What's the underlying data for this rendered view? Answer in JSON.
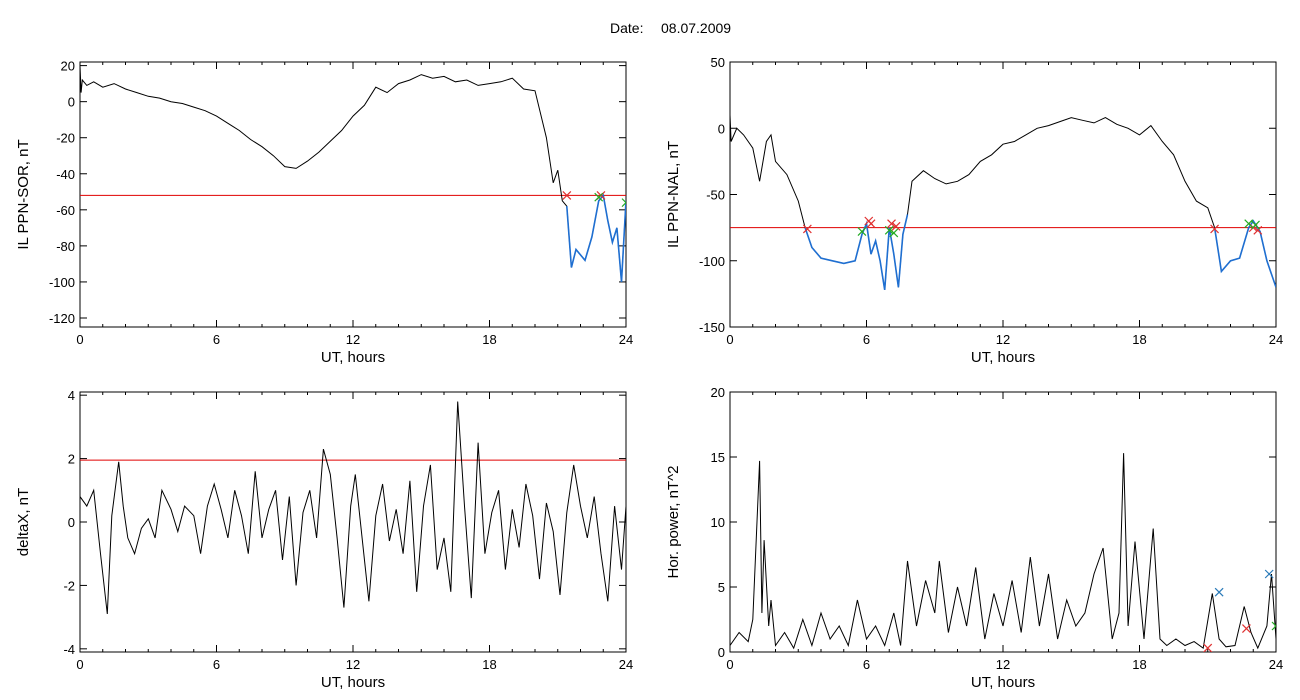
{
  "header": {
    "date_label": "Date:",
    "date_value": "08.07.2009"
  },
  "colors": {
    "trace": "#000000",
    "threshold": "#e00000",
    "highlight": "#1f6fd1",
    "marker_red": "#e03030",
    "marker_green": "#22aa22",
    "marker_blue": "#2a7ab8"
  },
  "chart_data": [
    {
      "id": "p1",
      "type": "line",
      "ylabel": "IL PPN-SOR, nT",
      "xlabel": "UT, hours",
      "xlim": [
        0,
        24
      ],
      "ylim": [
        -125,
        22
      ],
      "xticks": [
        0,
        6,
        12,
        18,
        24
      ],
      "yticks": [
        20,
        0,
        -20,
        -40,
        -60,
        -80,
        -100,
        -120
      ],
      "threshold": -52,
      "highlight_from": 21.4,
      "x": [
        0.0,
        0.05,
        0.1,
        0.3,
        0.6,
        1.0,
        1.5,
        2.0,
        2.5,
        3.0,
        3.5,
        4.0,
        4.5,
        5.0,
        5.5,
        6.0,
        6.5,
        7.0,
        7.5,
        8.0,
        8.5,
        9.0,
        9.5,
        10.0,
        10.5,
        11.0,
        11.5,
        12.0,
        12.5,
        13.0,
        13.5,
        14.0,
        14.5,
        15.0,
        15.5,
        16.0,
        16.5,
        17.0,
        17.5,
        18.0,
        18.5,
        19.0,
        19.5,
        20.0,
        20.5,
        20.8,
        21.0,
        21.2,
        21.4,
        21.6,
        21.8,
        22.0,
        22.2,
        22.5,
        22.8,
        23.0,
        23.2,
        23.4,
        23.6,
        23.8,
        24.0
      ],
      "values": [
        20,
        5,
        12,
        9,
        11,
        8,
        10,
        7,
        5,
        3,
        2,
        0,
        -1,
        -3,
        -5,
        -8,
        -12,
        -16,
        -21,
        -25,
        -30,
        -36,
        -37,
        -33,
        -28,
        -22,
        -16,
        -8,
        -2,
        8,
        5,
        10,
        12,
        15,
        13,
        14,
        11,
        12,
        9,
        10,
        11,
        13,
        7,
        6,
        -20,
        -45,
        -38,
        -55,
        -58,
        -92,
        -82,
        -85,
        -88,
        -75,
        -55,
        -52,
        -66,
        -78,
        -70,
        -100,
        -55
      ],
      "markers_red": [
        [
          21.4,
          -52
        ],
        [
          22.9,
          -52
        ]
      ],
      "markers_green": [
        [
          22.8,
          -53
        ],
        [
          24.0,
          -56
        ]
      ]
    },
    {
      "id": "p2",
      "type": "line",
      "ylabel": "IL PPN-NAL, nT",
      "xlabel": "UT, hours",
      "xlim": [
        0,
        24
      ],
      "ylim": [
        -150,
        50
      ],
      "xticks": [
        0,
        6,
        12,
        18,
        24
      ],
      "yticks": [
        50,
        0,
        -50,
        -100,
        -150
      ],
      "threshold": -75,
      "highlight_ranges": [
        [
          3.3,
          7.8
        ],
        [
          21.3,
          24
        ]
      ],
      "x": [
        0.0,
        0.05,
        0.3,
        0.6,
        1.0,
        1.3,
        1.6,
        1.8,
        2.0,
        2.5,
        3.0,
        3.3,
        3.6,
        4.0,
        4.5,
        5.0,
        5.5,
        5.8,
        6.0,
        6.2,
        6.4,
        6.6,
        6.8,
        7.0,
        7.2,
        7.4,
        7.6,
        7.8,
        8.0,
        8.5,
        9.0,
        9.5,
        10.0,
        10.5,
        11.0,
        11.5,
        12.0,
        12.5,
        13.0,
        13.5,
        14.0,
        14.5,
        15.0,
        15.5,
        16.0,
        16.5,
        17.0,
        17.5,
        18.0,
        18.5,
        19.0,
        19.5,
        20.0,
        20.5,
        21.0,
        21.3,
        21.6,
        22.0,
        22.4,
        22.8,
        23.0,
        23.3,
        23.6,
        24.0
      ],
      "values": [
        10,
        -10,
        0,
        -5,
        -15,
        -40,
        -10,
        -5,
        -25,
        -35,
        -55,
        -75,
        -90,
        -98,
        -100,
        -102,
        -100,
        -80,
        -72,
        -95,
        -85,
        -100,
        -122,
        -75,
        -95,
        -120,
        -80,
        -65,
        -40,
        -32,
        -38,
        -42,
        -40,
        -35,
        -25,
        -20,
        -12,
        -10,
        -5,
        0,
        2,
        5,
        8,
        6,
        4,
        8,
        3,
        0,
        -5,
        2,
        -10,
        -20,
        -40,
        -55,
        -60,
        -75,
        -108,
        -100,
        -98,
        -75,
        -70,
        -78,
        -100,
        -120
      ],
      "markers_red": [
        [
          3.4,
          -76
        ],
        [
          6.1,
          -70
        ],
        [
          6.2,
          -72
        ],
        [
          7.1,
          -72
        ],
        [
          7.3,
          -74
        ],
        [
          21.3,
          -76
        ],
        [
          23.0,
          -75
        ],
        [
          23.2,
          -77
        ]
      ],
      "markers_green": [
        [
          5.8,
          -78
        ],
        [
          7.0,
          -77
        ],
        [
          7.2,
          -79
        ],
        [
          22.8,
          -72
        ],
        [
          23.1,
          -73
        ]
      ]
    },
    {
      "id": "p3",
      "type": "line",
      "ylabel": "deltaX, nT",
      "xlabel": "UT, hours",
      "xlim": [
        0,
        24
      ],
      "ylim": [
        -4.1,
        4.1
      ],
      "xticks": [
        0,
        6,
        12,
        18,
        24
      ],
      "yticks": [
        4,
        2,
        0,
        -2,
        -4
      ],
      "threshold": 1.95,
      "x": [
        0.0,
        0.3,
        0.6,
        0.9,
        1.2,
        1.4,
        1.7,
        1.9,
        2.1,
        2.4,
        2.7,
        3.0,
        3.3,
        3.6,
        4.0,
        4.3,
        4.6,
        5.0,
        5.3,
        5.6,
        5.9,
        6.2,
        6.5,
        6.8,
        7.1,
        7.4,
        7.7,
        8.0,
        8.3,
        8.6,
        8.9,
        9.2,
        9.5,
        9.8,
        10.1,
        10.4,
        10.7,
        11.0,
        11.3,
        11.6,
        11.9,
        12.1,
        12.4,
        12.7,
        13.0,
        13.3,
        13.6,
        13.9,
        14.2,
        14.5,
        14.8,
        15.1,
        15.4,
        15.7,
        16.0,
        16.3,
        16.6,
        16.9,
        17.2,
        17.5,
        17.8,
        18.1,
        18.4,
        18.7,
        19.0,
        19.3,
        19.6,
        19.9,
        20.2,
        20.5,
        20.8,
        21.1,
        21.4,
        21.7,
        22.0,
        22.3,
        22.6,
        22.9,
        23.2,
        23.5,
        23.8,
        24.0
      ],
      "values": [
        0.8,
        0.5,
        1.0,
        -1.0,
        -2.9,
        0.2,
        1.9,
        0.5,
        -0.5,
        -1.0,
        -0.2,
        0.1,
        -0.5,
        1.0,
        0.4,
        -0.3,
        0.5,
        0.2,
        -1.0,
        0.5,
        1.2,
        0.4,
        -0.5,
        1.0,
        0.2,
        -1.0,
        1.6,
        -0.5,
        0.4,
        1.0,
        -1.2,
        0.8,
        -2.0,
        0.3,
        1.0,
        -0.5,
        2.3,
        1.5,
        -0.5,
        -2.7,
        0.5,
        1.5,
        -0.5,
        -2.5,
        0.2,
        1.2,
        -0.6,
        0.4,
        -1.0,
        1.3,
        -2.2,
        0.5,
        1.8,
        -1.5,
        -0.5,
        -2.2,
        3.8,
        0.5,
        -2.4,
        2.5,
        -1.0,
        0.3,
        1.0,
        -1.5,
        0.4,
        -0.8,
        1.2,
        0.2,
        -1.8,
        0.6,
        -0.3,
        -2.3,
        0.3,
        1.8,
        0.5,
        -0.5,
        0.8,
        -1.0,
        -2.5,
        0.5,
        -1.5,
        0.5
      ]
    },
    {
      "id": "p4",
      "type": "line",
      "ylabel": "Hor. power, nT^2",
      "xlabel": "UT, hours",
      "xlim": [
        0,
        24
      ],
      "ylim": [
        0,
        20
      ],
      "xticks": [
        0,
        6,
        12,
        18,
        24
      ],
      "yticks": [
        20,
        15,
        10,
        5,
        0
      ],
      "x": [
        0.0,
        0.4,
        0.8,
        1.0,
        1.3,
        1.4,
        1.5,
        1.7,
        1.8,
        2.0,
        2.4,
        2.8,
        3.2,
        3.6,
        4.0,
        4.4,
        4.8,
        5.2,
        5.6,
        6.0,
        6.4,
        6.8,
        7.2,
        7.5,
        7.8,
        8.2,
        8.6,
        9.0,
        9.2,
        9.6,
        10.0,
        10.4,
        10.8,
        11.2,
        11.6,
        12.0,
        12.4,
        12.8,
        13.2,
        13.6,
        14.0,
        14.4,
        14.8,
        15.2,
        15.6,
        16.0,
        16.4,
        16.8,
        17.1,
        17.3,
        17.5,
        17.8,
        18.2,
        18.6,
        18.9,
        19.2,
        19.6,
        20.0,
        20.4,
        20.8,
        21.2,
        21.5,
        21.8,
        22.2,
        22.6,
        22.9,
        23.2,
        23.6,
        23.8,
        24.0
      ],
      "values": [
        0.5,
        1.5,
        0.8,
        2.5,
        14.7,
        3.0,
        8.6,
        2.0,
        4.0,
        0.5,
        1.5,
        0.3,
        2.5,
        0.5,
        3.0,
        1.0,
        2.0,
        0.5,
        4.0,
        1.0,
        2.0,
        0.5,
        3.0,
        0.5,
        7.0,
        2.0,
        5.5,
        3.0,
        7.0,
        1.5,
        5.0,
        2.0,
        6.5,
        1.0,
        4.5,
        2.0,
        5.5,
        1.5,
        7.3,
        2.0,
        6.0,
        1.0,
        4.0,
        2.0,
        3.0,
        6.0,
        8.0,
        1.0,
        3.0,
        15.3,
        2.0,
        8.5,
        1.0,
        9.5,
        1.0,
        0.5,
        1.0,
        0.5,
        0.8,
        0.3,
        4.5,
        1.0,
        0.4,
        0.5,
        3.5,
        1.5,
        0.3,
        2.0,
        6.0,
        1.0
      ],
      "markers_red": [
        [
          21.0,
          0.3
        ],
        [
          22.7,
          1.8
        ]
      ],
      "markers_blue": [
        [
          21.5,
          4.6
        ],
        [
          23.7,
          6.0
        ]
      ],
      "markers_green": [
        [
          24.0,
          2.0
        ]
      ]
    }
  ]
}
